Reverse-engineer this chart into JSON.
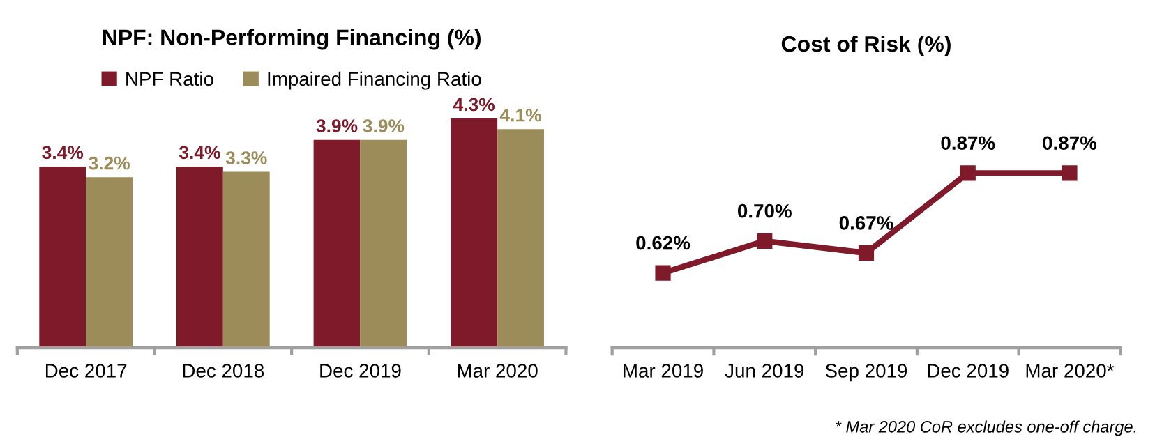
{
  "chart_data": [
    {
      "type": "bar",
      "title": "NPF: Non-Performing Financing (%)",
      "categories": [
        "Dec 2017",
        "Dec 2018",
        "Dec 2019",
        "Mar 2020"
      ],
      "series": [
        {
          "name": "NPF Ratio",
          "color": "#7f1a2b",
          "values": [
            3.4,
            3.4,
            3.9,
            4.3
          ],
          "value_labels": [
            "3.4%",
            "3.4%",
            "3.9%",
            "4.3%"
          ]
        },
        {
          "name": "Impaired Financing Ratio",
          "color": "#9c8c5a",
          "values": [
            3.2,
            3.3,
            3.9,
            4.1
          ],
          "value_labels": [
            "3.2%",
            "3.3%",
            "3.9%",
            "4.1%"
          ]
        }
      ],
      "legend": "top",
      "tick_labels": "x",
      "grid": false
    },
    {
      "type": "line",
      "title": "Cost of Risk (%)",
      "categories": [
        "Mar 2019",
        "Jun 2019",
        "Sep 2019",
        "Dec 2019",
        "Mar 2020*"
      ],
      "series": [
        {
          "color": "#7f1a2b",
          "values": [
            0.62,
            0.7,
            0.67,
            0.87,
            0.87
          ],
          "value_labels": [
            "0.62%",
            "0.70%",
            "0.67%",
            "0.87%",
            "0.87%"
          ]
        }
      ],
      "marker": "square",
      "line_style": "solid",
      "tick_labels": "x",
      "grid": false,
      "annotations": [
        "* Mar 2020 CoR excludes one-off charge."
      ]
    }
  ]
}
